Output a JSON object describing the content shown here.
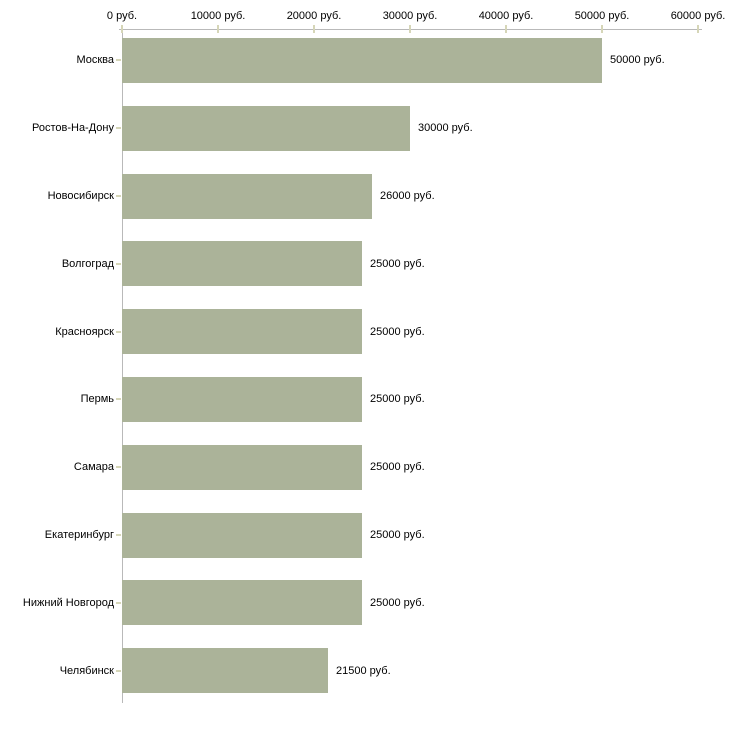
{
  "chart_data": {
    "type": "bar",
    "orientation": "horizontal",
    "categories": [
      "Москва",
      "Ростов-На-Дону",
      "Новосибирск",
      "Волгоград",
      "Красноярск",
      "Пермь",
      "Самара",
      "Екатеринбург",
      "Нижний Новгород",
      "Челябинск"
    ],
    "values": [
      50000,
      30000,
      26000,
      25000,
      25000,
      25000,
      25000,
      25000,
      25000,
      21500
    ],
    "value_labels": [
      "50000 руб.",
      "30000 руб.",
      "26000 руб.",
      "25000 руб.",
      "25000 руб.",
      "25000 руб.",
      "25000 руб.",
      "25000 руб.",
      "25000 руб.",
      "21500 руб."
    ],
    "x_axis": {
      "position": "top",
      "range": [
        0,
        60000
      ],
      "ticks": [
        0,
        10000,
        20000,
        30000,
        40000,
        50000,
        60000
      ],
      "tick_labels": [
        "0 руб.",
        "10000 руб.",
        "20000 руб.",
        "30000 руб.",
        "40000 руб.",
        "50000 руб.",
        "60000 руб."
      ]
    },
    "grid": false,
    "legend": false,
    "colors": {
      "bar": "#abb399",
      "axis": "#b9b9b9",
      "tick": "#d6d6b8",
      "text": "#000000"
    }
  }
}
